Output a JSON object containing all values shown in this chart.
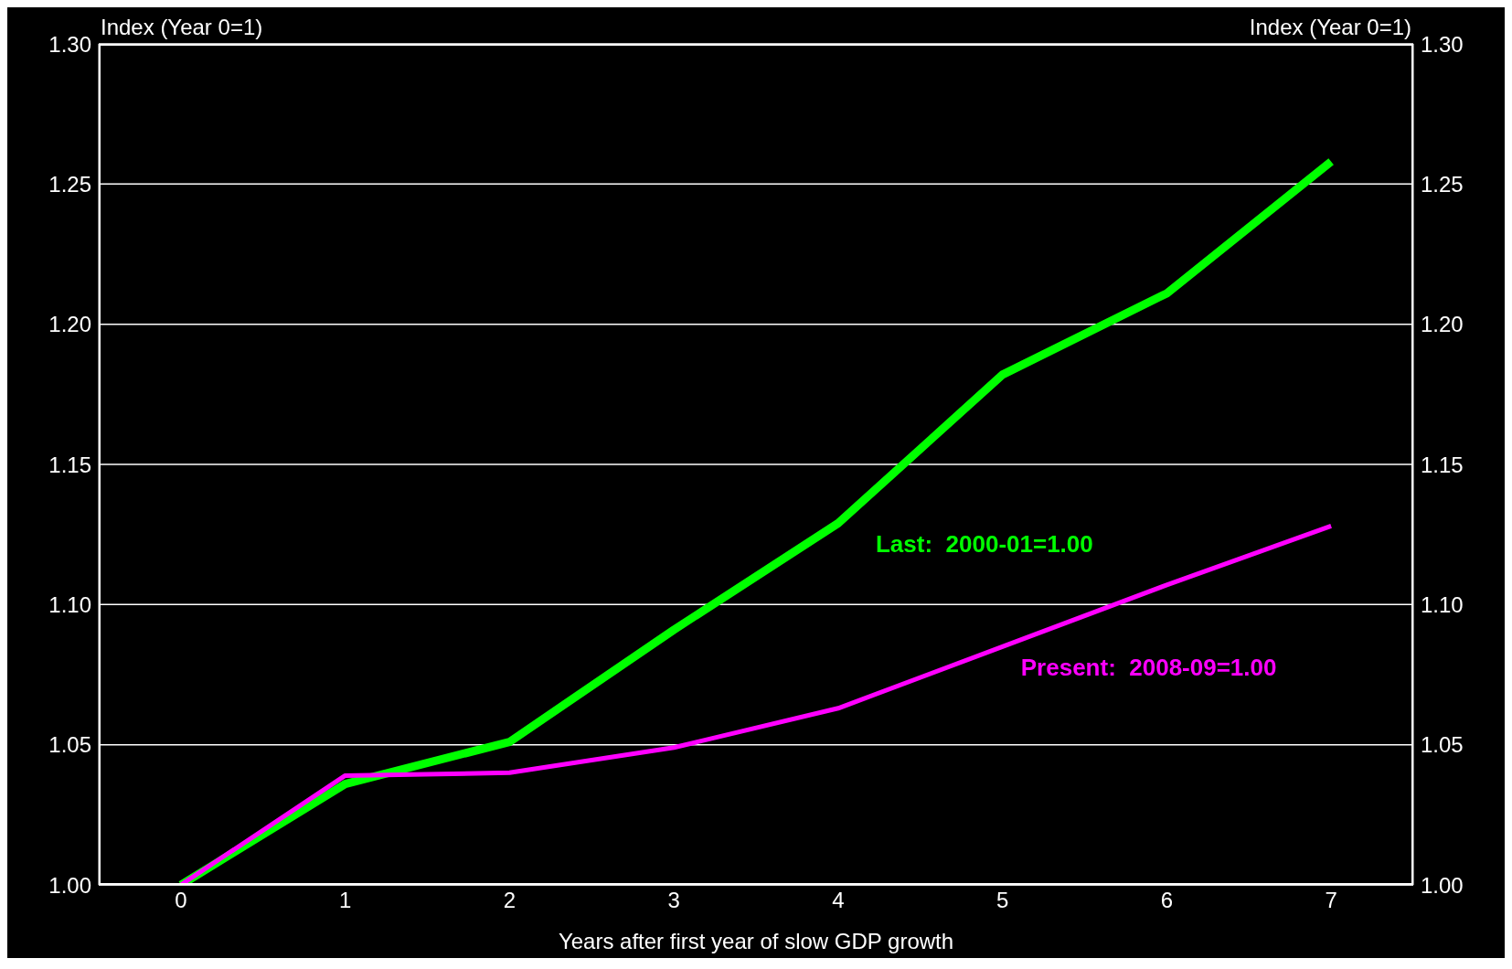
{
  "chart_data": {
    "type": "line",
    "xlabel": "Years after first year of slow GDP growth",
    "ylabel": "Index (Year 0=1)",
    "y2label": "Index (Year 0=1)",
    "categories": [
      "0",
      "1",
      "2",
      "3",
      "4",
      "5",
      "6",
      "7"
    ],
    "series": [
      {
        "name": "Last:  2000-01=1.00",
        "color": "#00ff00",
        "values": [
          1.0,
          1.036,
          1.051,
          1.091,
          1.129,
          1.182,
          1.211,
          1.258
        ]
      },
      {
        "name": "Present:  2008-09=1.00",
        "color": "#ff00ff",
        "values": [
          1.0,
          1.039,
          1.04,
          1.049,
          1.063,
          1.085,
          1.107,
          1.128
        ]
      }
    ],
    "ylim": [
      1.0,
      1.3
    ],
    "yticks": [
      {
        "value": 1.0,
        "label": "1.00"
      },
      {
        "value": 1.05,
        "label": "1.05"
      },
      {
        "value": 1.1,
        "label": "1.10"
      },
      {
        "value": 1.15,
        "label": "1.15"
      },
      {
        "value": 1.2,
        "label": "1.20"
      },
      {
        "value": 1.25,
        "label": "1.25"
      },
      {
        "value": 1.3,
        "label": "1.30"
      }
    ],
    "y2lim": [
      1.0,
      1.3
    ],
    "y2ticks": [
      {
        "value": 1.0,
        "label": "1.00"
      },
      {
        "value": 1.05,
        "label": "1.05"
      },
      {
        "value": 1.1,
        "label": "1.10"
      },
      {
        "value": 1.15,
        "label": "1.15"
      },
      {
        "value": 1.2,
        "label": "1.20"
      },
      {
        "value": 1.25,
        "label": "1.25"
      },
      {
        "value": 1.3,
        "label": "1.30"
      }
    ],
    "grid": "y",
    "legend": false,
    "marker": "none",
    "line_style": "solid"
  }
}
